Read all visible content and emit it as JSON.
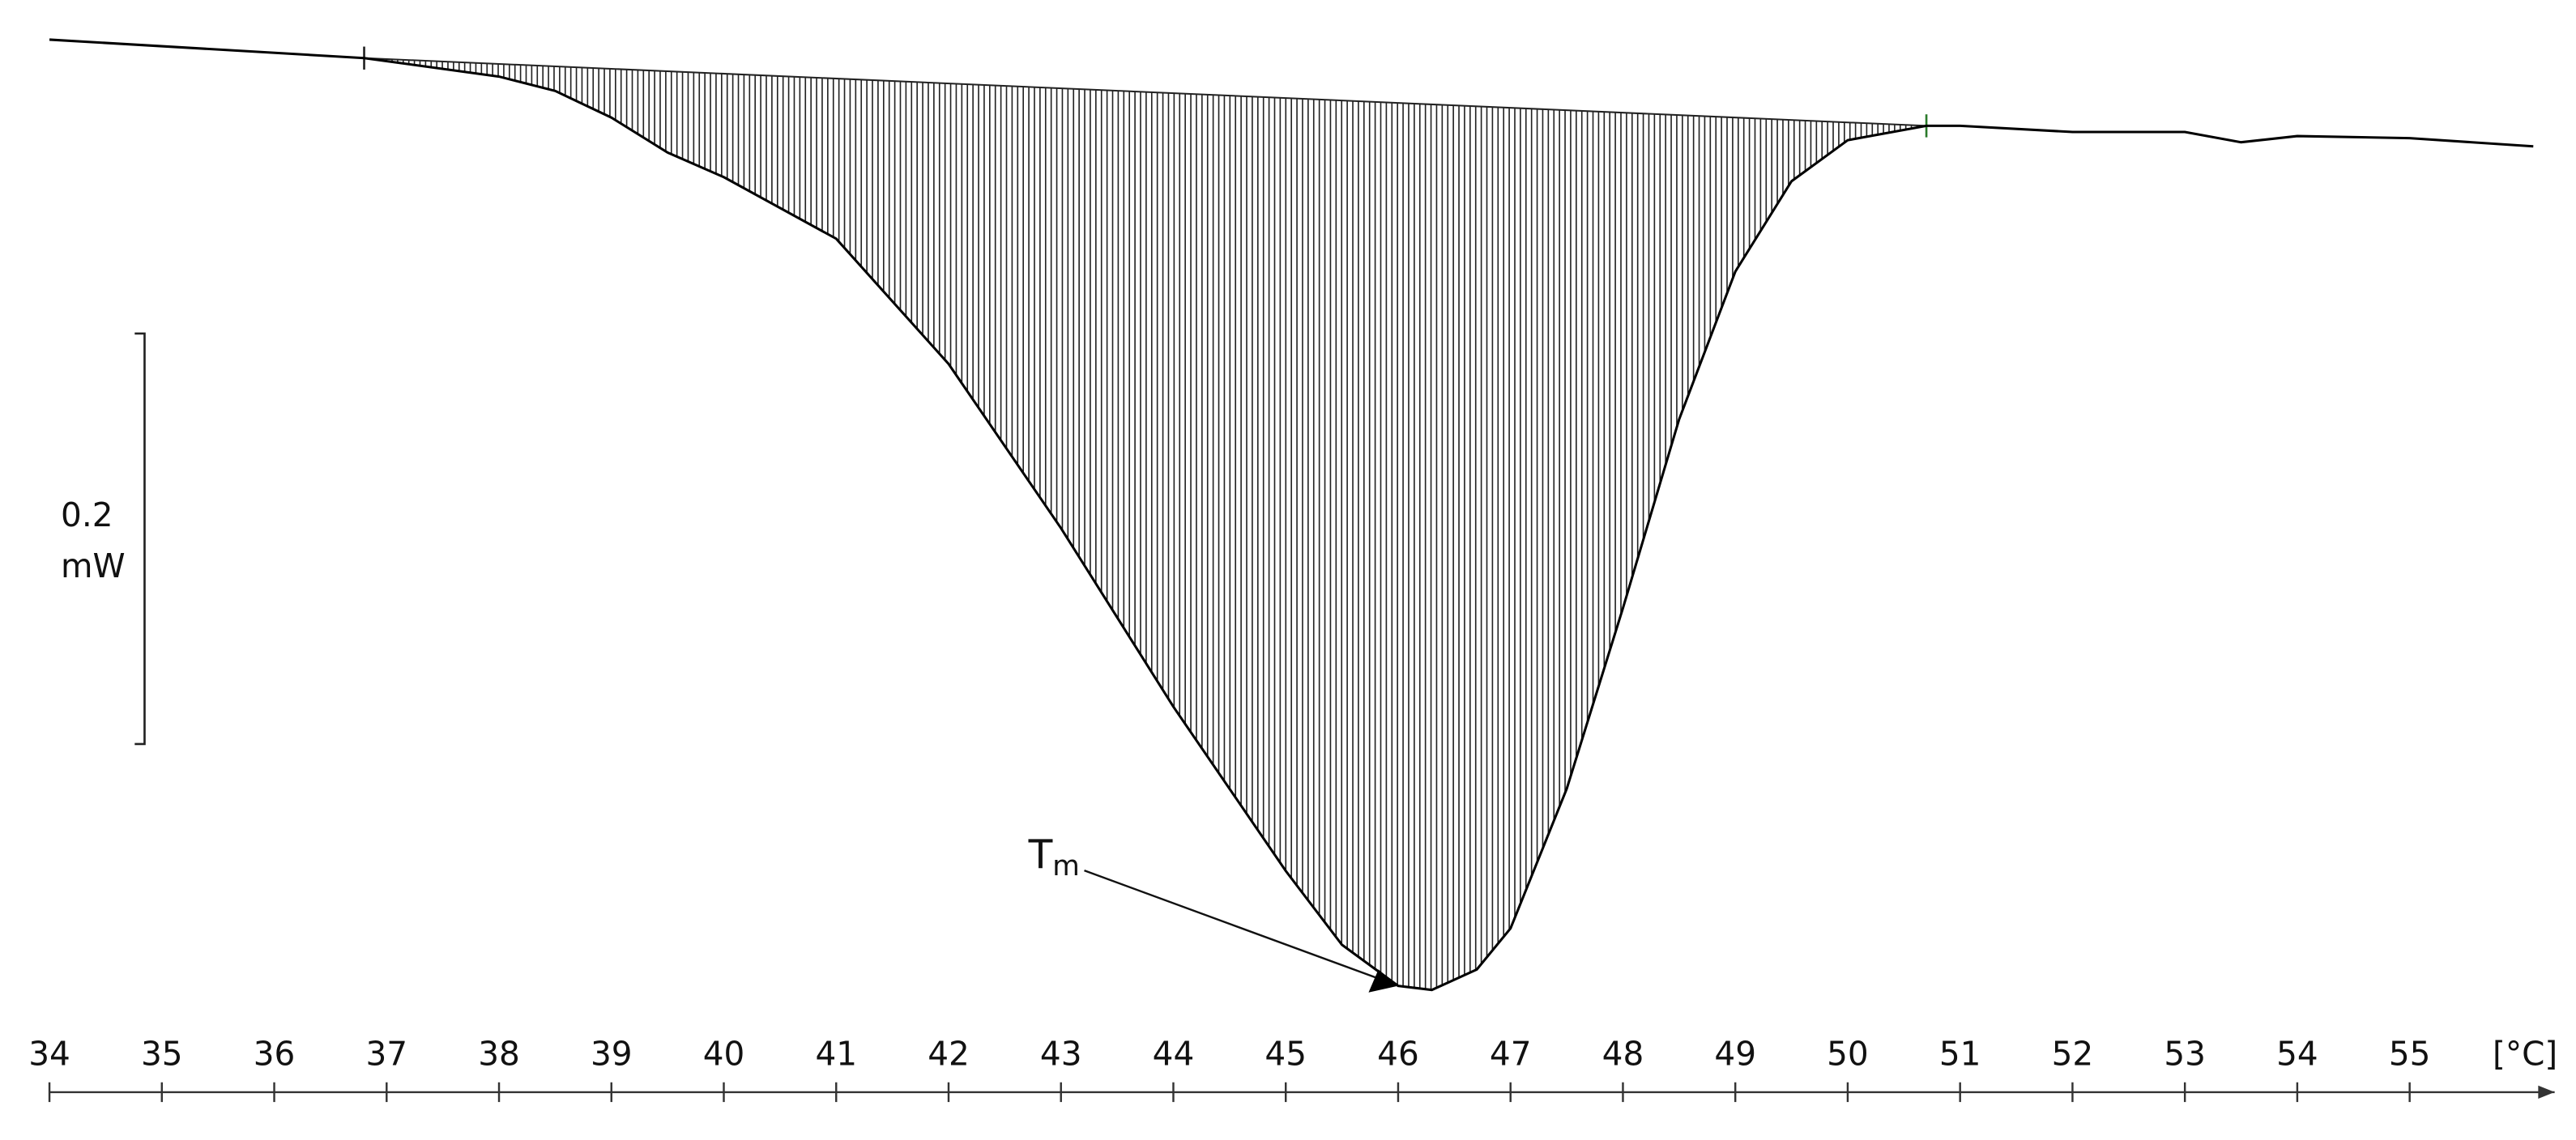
{
  "chart_data": {
    "type": "line",
    "x": [
      34,
      36.8,
      38,
      38.5,
      39,
      39.5,
      40,
      41,
      42,
      43,
      44,
      45,
      45.5,
      46,
      46.3,
      46.7,
      47,
      47.5,
      48,
      48.5,
      49,
      49.5,
      50,
      50.7,
      51,
      52,
      53,
      53.5,
      54,
      55,
      56.1
    ],
    "values": [
      0,
      -0.009,
      -0.018,
      -0.025,
      -0.038,
      -0.055,
      -0.067,
      -0.097,
      -0.158,
      -0.238,
      -0.325,
      -0.405,
      -0.441,
      -0.461,
      -0.463,
      -0.453,
      -0.433,
      -0.365,
      -0.277,
      -0.185,
      -0.113,
      -0.069,
      -0.049,
      -0.042,
      -0.042,
      -0.045,
      -0.045,
      -0.05,
      -0.047,
      -0.048,
      -0.052
    ],
    "color": "#000000",
    "baseline": {
      "x": [
        36.8,
        50.7
      ],
      "values": [
        -0.009,
        -0.042
      ]
    },
    "xlim": [
      33.56,
      56.48
    ],
    "ylim": [
      -0.48,
      0.02
    ],
    "xticks": [
      34,
      35,
      36,
      37,
      38,
      39,
      40,
      41,
      42,
      43,
      44,
      45,
      46,
      47,
      48,
      49,
      50,
      51,
      52,
      53,
      54,
      55
    ],
    "xlabel": "[°C]",
    "scale_bar": {
      "value": 0.2,
      "number": "0.2",
      "unit": "mW"
    },
    "annotation": {
      "text": "T",
      "subscript": "m",
      "x": 46.0,
      "y": -0.461
    }
  }
}
